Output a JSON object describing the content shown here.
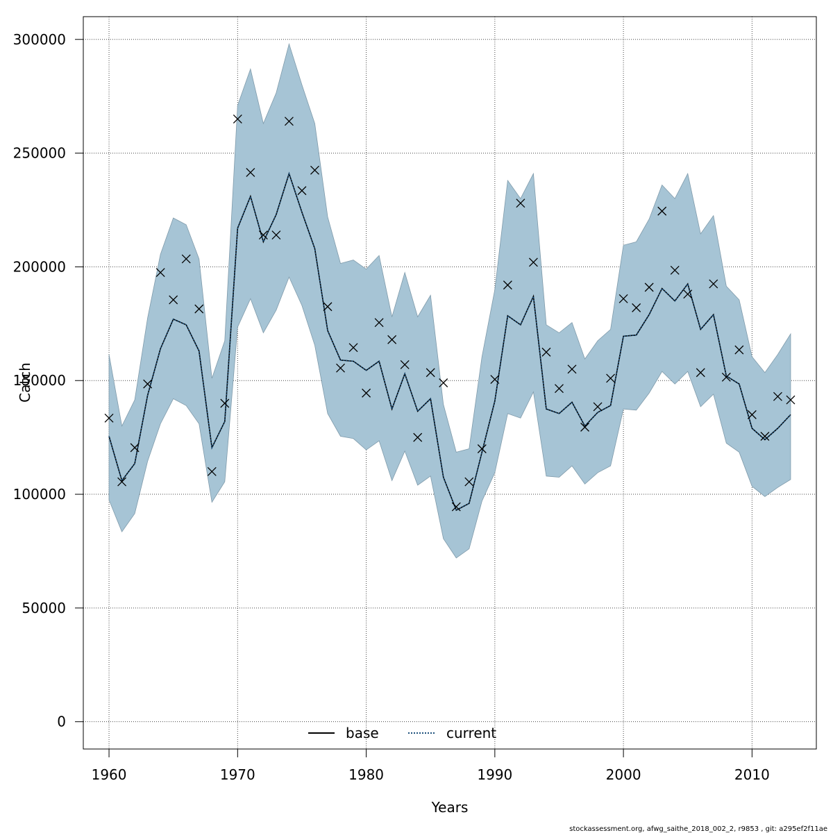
{
  "chart_data": {
    "type": "line",
    "xlabel": "Years",
    "ylabel": "Catch",
    "xlim": [
      1958,
      2015
    ],
    "ylim": [
      -12000,
      310000
    ],
    "x_ticks": [
      1960,
      1970,
      1980,
      1990,
      2000,
      2010
    ],
    "y_ticks": [
      0,
      50000,
      100000,
      150000,
      200000,
      250000,
      300000
    ],
    "grid": true,
    "legend_position": "bottom-center",
    "years": [
      1960,
      1961,
      1962,
      1963,
      1964,
      1965,
      1966,
      1967,
      1968,
      1969,
      1970,
      1971,
      1972,
      1973,
      1974,
      1975,
      1976,
      1977,
      1978,
      1979,
      1980,
      1981,
      1982,
      1983,
      1984,
      1985,
      1986,
      1987,
      1988,
      1989,
      1990,
      1991,
      1992,
      1993,
      1994,
      1995,
      1996,
      1997,
      1998,
      1999,
      2000,
      2001,
      2002,
      2003,
      2004,
      2005,
      2006,
      2007,
      2008,
      2009,
      2010,
      2011,
      2012,
      2013
    ],
    "series": [
      {
        "name": "base",
        "style": "solid",
        "color": "#000000",
        "values": [
          125500,
          106000,
          113500,
          143500,
          164000,
          177000,
          174500,
          163000,
          120500,
          132000,
          217000,
          231000,
          211000,
          223000,
          241000,
          224000,
          208000,
          172000,
          159000,
          158500,
          154500,
          158500,
          137500,
          153000,
          136500,
          142000,
          107500,
          93000,
          96000,
          118500,
          141000,
          178500,
          174500,
          187000,
          137500,
          135500,
          140500,
          130000,
          136000,
          139000,
          169500,
          170000,
          179000,
          190500,
          185000,
          192500,
          172500,
          179000,
          152000,
          148500,
          129000,
          124000,
          129000,
          135000
        ]
      },
      {
        "name": "current",
        "style": "dotted",
        "color": "#1a4e7a",
        "values": [
          125500,
          106000,
          113500,
          143500,
          164000,
          177000,
          174500,
          163000,
          120500,
          132000,
          217000,
          231000,
          211000,
          223000,
          241000,
          224000,
          208000,
          172000,
          159000,
          158500,
          154500,
          158500,
          137500,
          153000,
          136500,
          142000,
          107500,
          93000,
          96000,
          118500,
          141000,
          178500,
          174500,
          187000,
          137500,
          135500,
          140500,
          130000,
          136000,
          139000,
          169500,
          170000,
          179000,
          190500,
          185000,
          192500,
          172500,
          179000,
          152000,
          148500,
          129000,
          124000,
          129000,
          135000
        ]
      }
    ],
    "confidence_band": {
      "color": "#a6c4d5",
      "upper": [
        161500,
        130000,
        141500,
        177500,
        205500,
        221500,
        218500,
        203500,
        151000,
        167500,
        271000,
        287000,
        263000,
        276500,
        298000,
        280000,
        263000,
        222000,
        201500,
        203000,
        199000,
        205000,
        178000,
        197500,
        178000,
        187500,
        139500,
        118500,
        120000,
        160500,
        190000,
        238000,
        230000,
        241000,
        174500,
        171000,
        175500,
        159500,
        167500,
        172500,
        209500,
        211000,
        221000,
        236000,
        230000,
        241000,
        214500,
        222500,
        191500,
        185500,
        160500,
        153500,
        161500,
        170500
      ],
      "lower": [
        97500,
        83500,
        91500,
        114500,
        131000,
        142000,
        139000,
        131000,
        96500,
        105500,
        173500,
        186000,
        171000,
        181000,
        195500,
        183000,
        165500,
        135500,
        125500,
        124500,
        119500,
        123500,
        106000,
        119000,
        104000,
        108000,
        80500,
        72000,
        76000,
        97000,
        109500,
        135500,
        133500,
        145000,
        108000,
        107500,
        112500,
        104500,
        109500,
        112500,
        137500,
        137000,
        144500,
        154000,
        148500,
        154000,
        138500,
        144000,
        122500,
        118500,
        103500,
        99000,
        103000,
        106500
      ]
    },
    "observations": {
      "marker": "x",
      "values": [
        133500,
        105500,
        120500,
        148500,
        197500,
        185500,
        203500,
        181500,
        110000,
        140000,
        265000,
        241500,
        214000,
        214000,
        264000,
        233500,
        242500,
        182500,
        155500,
        164500,
        144500,
        175500,
        168000,
        157000,
        125000,
        153500,
        149000,
        94500,
        105500,
        120000,
        150500,
        192000,
        228000,
        202000,
        162500,
        146500,
        155000,
        129500,
        138500,
        151000,
        186000,
        182000,
        191000,
        224500,
        198500,
        188000,
        153500,
        192500,
        151500,
        163500,
        135000,
        125500,
        143000,
        141500
      ]
    },
    "footer_text": "stockassessment.org, afwg_saithe_2018_002_2, r9853 , git: a295ef2f11ae"
  }
}
